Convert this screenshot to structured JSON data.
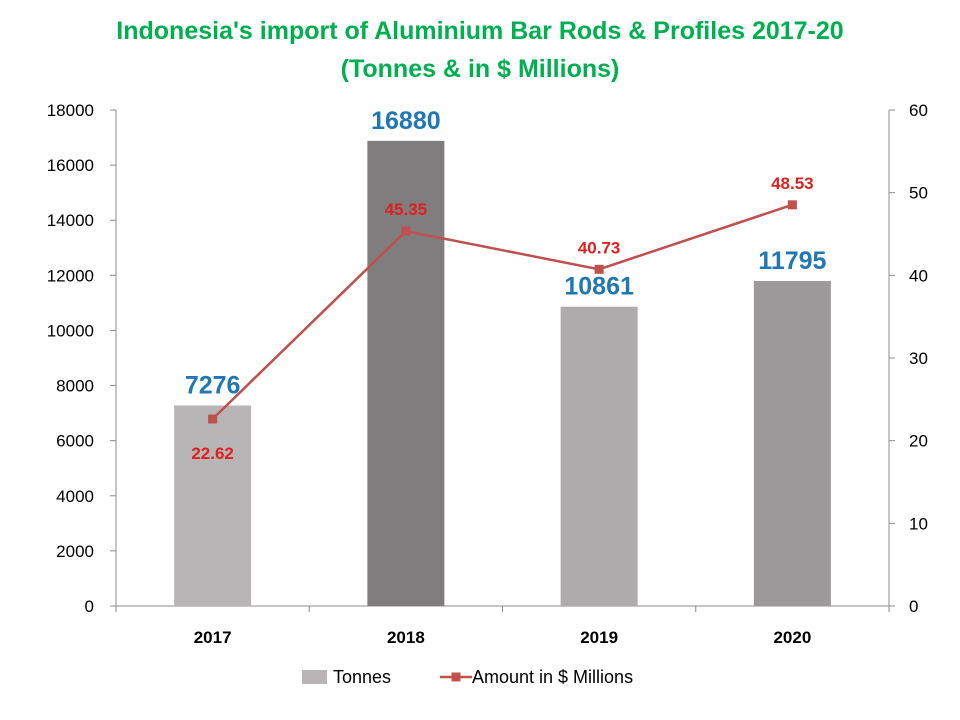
{
  "chart_data": {
    "type": "bar",
    "title": "Indonesia's import of Aluminium Bar Rods & Profiles 2017-20",
    "subtitle": "(Tonnes & in $ Millions)",
    "categories": [
      "2017",
      "2018",
      "2019",
      "2020"
    ],
    "series": [
      {
        "name": "Tonnes",
        "type": "bar",
        "axis": "left",
        "values": [
          7276,
          16880,
          10861,
          11795
        ],
        "colors": [
          "#b7b5b6",
          "#7f7d7e",
          "#adabac",
          "#9b9999"
        ],
        "label_color": "#1f78b4"
      },
      {
        "name": "Amount in $ Millions",
        "type": "line",
        "axis": "right",
        "values": [
          22.62,
          45.35,
          40.73,
          48.53
        ],
        "color": "#c0504d",
        "label_color": "#e0201f"
      }
    ],
    "y_left": {
      "min": 0,
      "max": 18000,
      "step": 2000,
      "ticks": [
        "0",
        "2000",
        "4000",
        "6000",
        "8000",
        "10000",
        "12000",
        "14000",
        "16000",
        "18000"
      ]
    },
    "y_right": {
      "min": 0,
      "max": 60,
      "step": 10,
      "ticks": [
        "0",
        "10",
        "20",
        "30",
        "40",
        "50",
        "60"
      ]
    },
    "grid": false,
    "legend_position": "bottom"
  }
}
